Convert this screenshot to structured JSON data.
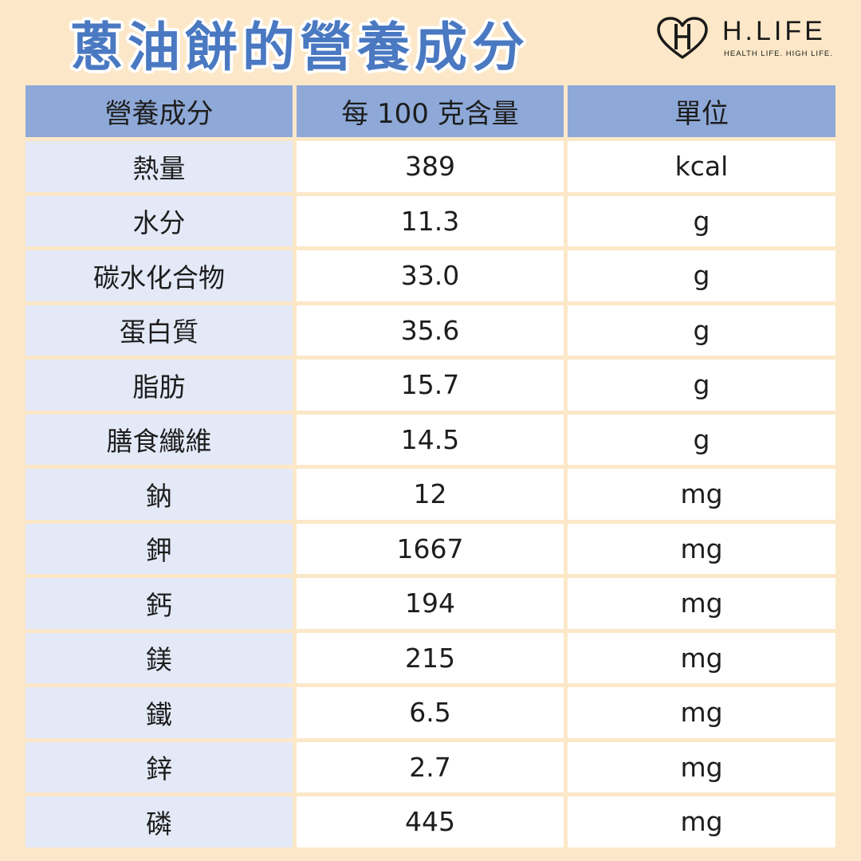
{
  "title": "蔥油餅的營養成分",
  "logo": {
    "name": "H.LIFE",
    "tagline": "HEALTH LIFE. HIGH LIFE.",
    "icon": "heart-h-logo-icon"
  },
  "colors": {
    "background": "#fce8c8",
    "title": "#4a79c2",
    "header_bg": "#8ea9d8",
    "first_column_bg": "#e4e9f8",
    "cell_bg": "#ffffff"
  },
  "table": {
    "headers": [
      "營養成分",
      "每 100 克含量",
      "單位"
    ],
    "rows": [
      [
        "熱量",
        "389",
        "kcal"
      ],
      [
        "水分",
        "11.3",
        "g"
      ],
      [
        "碳水化合物",
        "33.0",
        "g"
      ],
      [
        "蛋白質",
        "35.6",
        "g"
      ],
      [
        "脂肪",
        "15.7",
        "g"
      ],
      [
        "膳食纖維",
        "14.5",
        "g"
      ],
      [
        "鈉",
        "12",
        "mg"
      ],
      [
        "鉀",
        "1667",
        "mg"
      ],
      [
        "鈣",
        "194",
        "mg"
      ],
      [
        "鎂",
        "215",
        "mg"
      ],
      [
        "鐵",
        "6.5",
        "mg"
      ],
      [
        "鋅",
        "2.7",
        "mg"
      ],
      [
        "磷",
        "445",
        "mg"
      ]
    ]
  }
}
